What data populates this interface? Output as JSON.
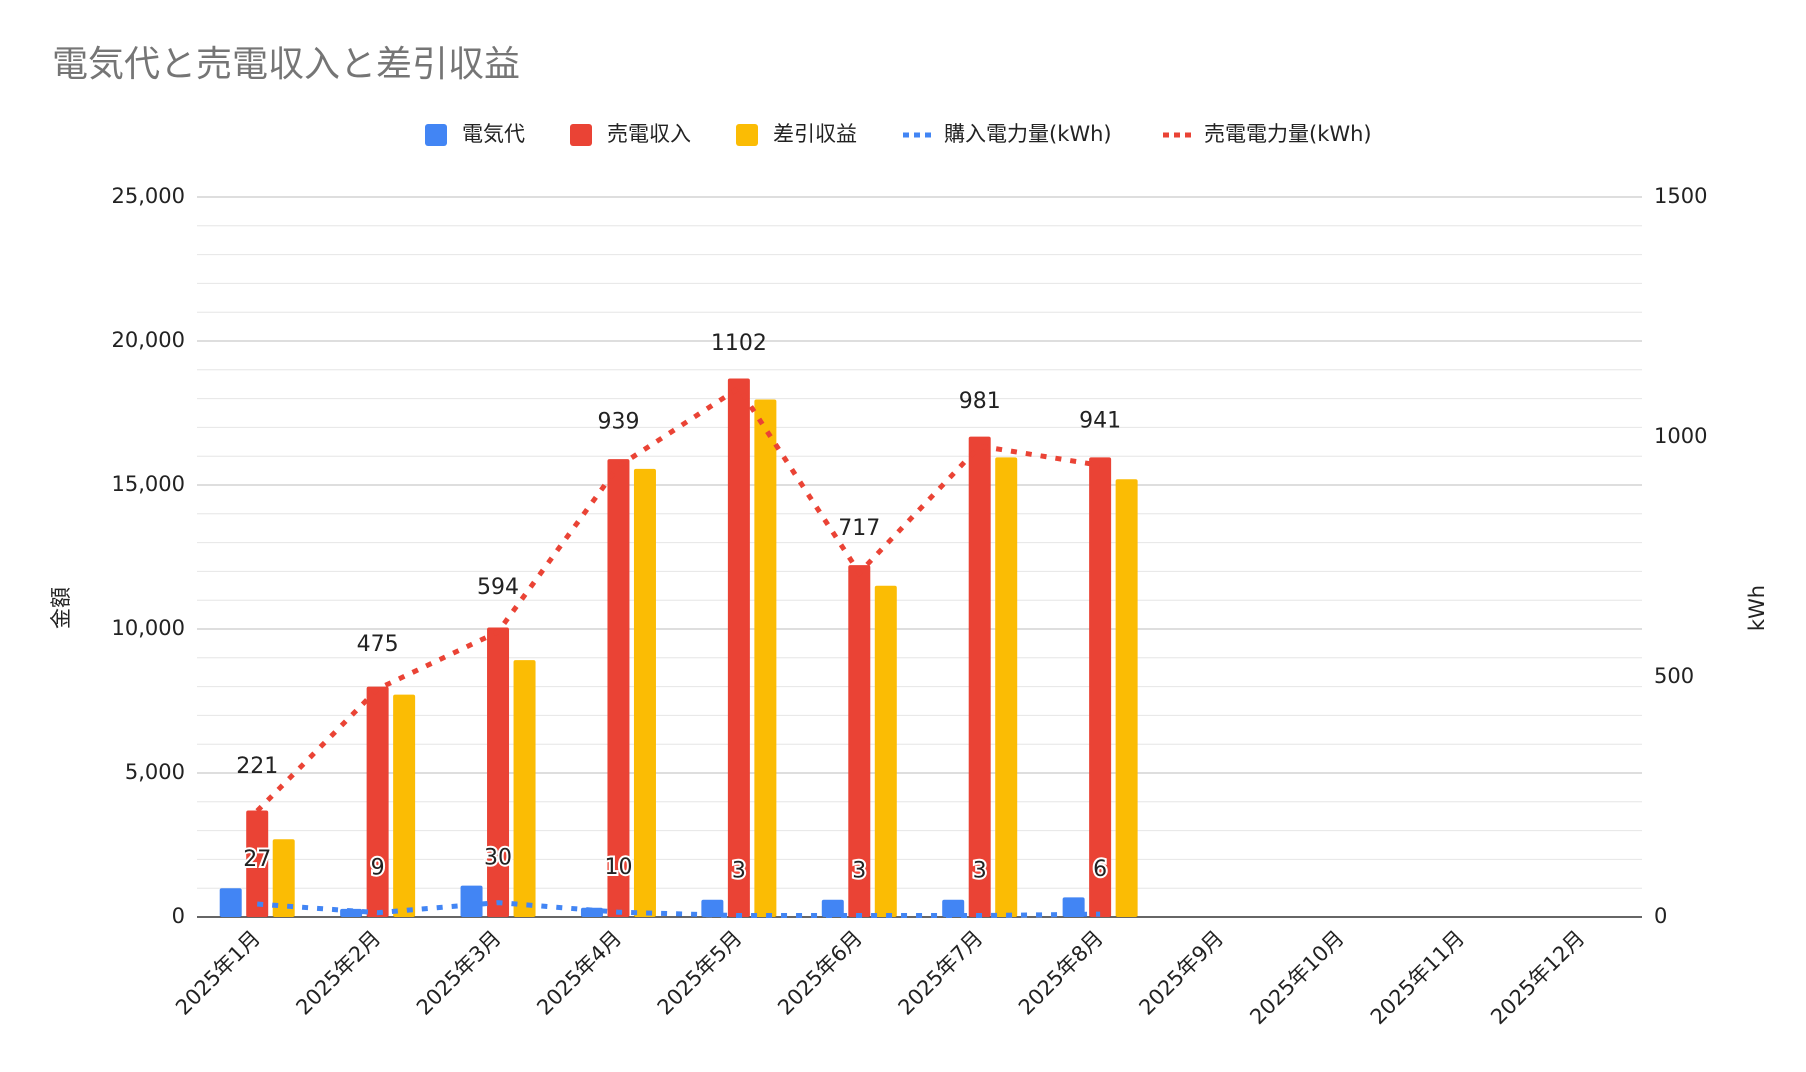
{
  "chart_data": {
    "type": "bar",
    "title": "電気代と売電収入と差引収益",
    "y_label": "金額",
    "y2_label": "kWh",
    "categories": [
      "2025年1月",
      "2025年2月",
      "2025年3月",
      "2025年4月",
      "2025年5月",
      "2025年6月",
      "2025年7月",
      "2025年8月",
      "2025年9月",
      "2025年10月",
      "2025年11月",
      "2025年12月"
    ],
    "series": [
      {
        "name": "電気代",
        "color": "#4285f4",
        "values": [
          1000,
          280,
          1090,
          320,
          600,
          600,
          600,
          680,
          null,
          null,
          null,
          null
        ]
      },
      {
        "name": "売電収入",
        "color": "#ea4335",
        "values": [
          3700,
          8000,
          10050,
          15900,
          18700,
          12220,
          16680,
          15960,
          null,
          null,
          null,
          null
        ]
      },
      {
        "name": "差引収益",
        "color": "#fbbc04",
        "values": [
          2700,
          7720,
          8920,
          15560,
          17970,
          11500,
          15960,
          15200,
          null,
          null,
          null,
          null
        ]
      },
      {
        "name": "購入電力量(kWh)",
        "color": "#4285f4",
        "type": "line",
        "axis": "y2",
        "data_labels": true,
        "values": [
          27,
          9,
          30,
          10,
          3,
          3,
          3,
          6,
          null,
          null,
          null,
          null
        ]
      },
      {
        "name": "売電電力量(kWh)",
        "color": "#ea4335",
        "type": "line",
        "axis": "y2",
        "data_labels": true,
        "values": [
          221,
          475,
          594,
          939,
          1102,
          717,
          981,
          941,
          null,
          null,
          null,
          null
        ]
      }
    ],
    "ylim": [
      0,
      25000
    ],
    "yticks": [
      0,
      {
        "value": 5000,
        "label": "5,000"
      },
      {
        "value": 10000,
        "label": "10,000"
      },
      {
        "value": 15000,
        "label": "15,000"
      },
      {
        "value": 20000,
        "label": "20,000"
      },
      {
        "value": 25000,
        "label": "25,000"
      }
    ],
    "y2lim": [
      0,
      1500
    ],
    "y2ticks": [
      0,
      500,
      1000,
      1500
    ],
    "grid": true,
    "legend": "top"
  }
}
